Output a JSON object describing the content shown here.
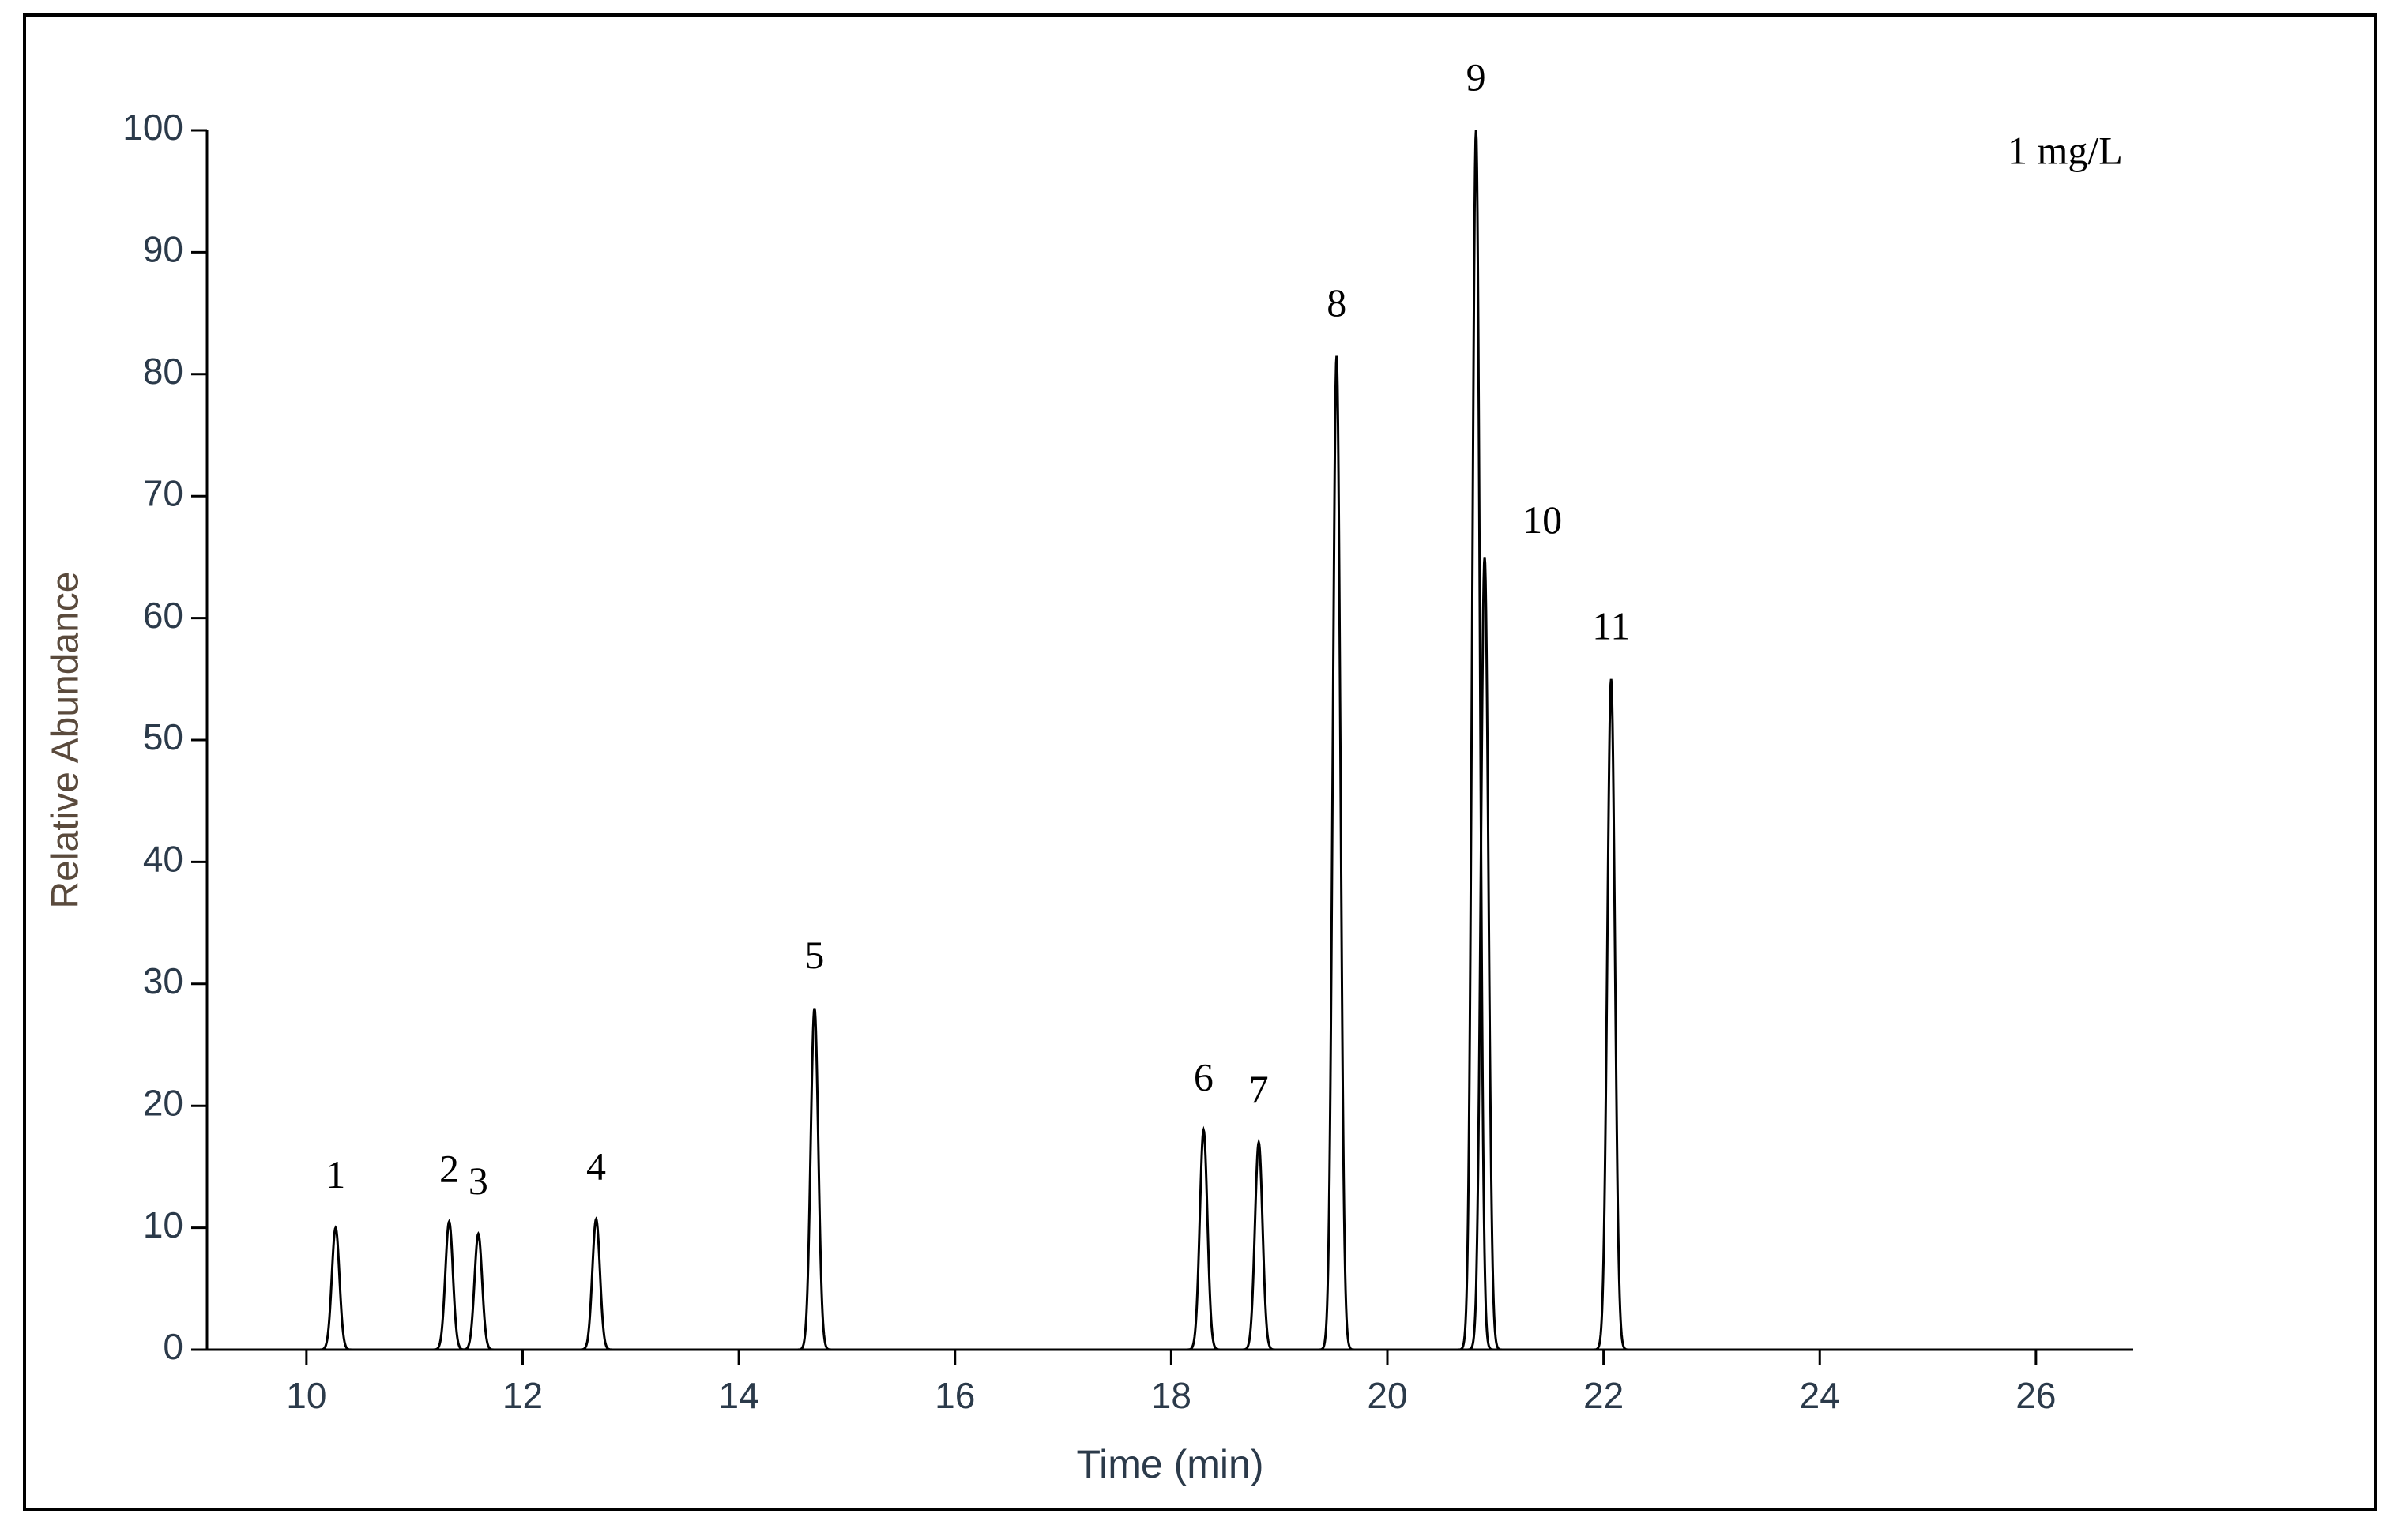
{
  "chart_data": {
    "type": "chromatogram",
    "annotation": "1 mg/L",
    "xlabel": "Time (min)",
    "ylabel": "Relative Abundance",
    "x": [
      10.27,
      11.32,
      11.59,
      12.68,
      14.7,
      18.3,
      18.81,
      19.53,
      20.82,
      20.9,
      22.07
    ],
    "values": [
      10,
      10.5,
      9.5,
      10.7,
      28,
      18,
      17,
      81.5,
      100,
      65,
      55
    ],
    "labels": [
      "1",
      "2",
      "3",
      "4",
      "5",
      "6",
      "7",
      "8",
      "9",
      "10",
      "11"
    ],
    "color": "#000000",
    "xlim": [
      9.08,
      26.9
    ],
    "xticks": [
      10,
      12,
      14,
      16,
      18,
      20,
      22,
      24,
      26
    ],
    "ylim": [
      0,
      100
    ],
    "yticks": [
      0,
      10,
      20,
      30,
      40,
      50,
      60,
      70,
      80,
      90,
      100
    ]
  }
}
